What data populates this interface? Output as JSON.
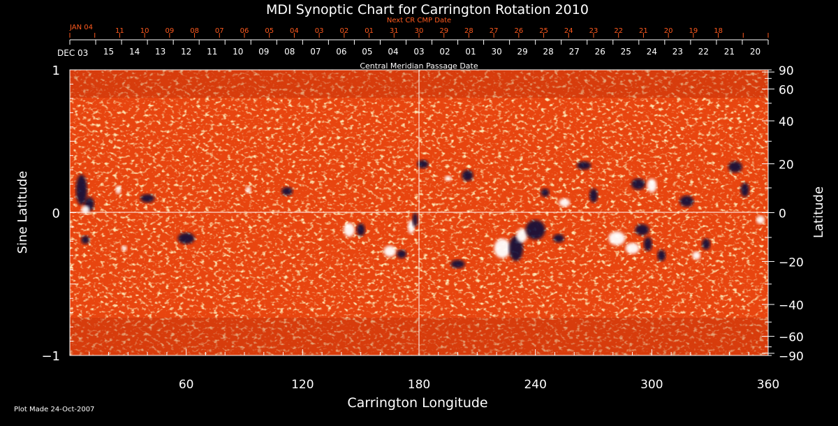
{
  "chart_data": {
    "type": "heatmap",
    "title": "MDI Synoptic Chart for Carrington Rotation 2010",
    "xlabel": "Carrington Longitude",
    "ylabel_left": "Sine Latitude",
    "ylabel_right": "Latitude",
    "xlim": [
      0,
      360
    ],
    "ylim": [
      -1,
      1
    ],
    "x_ticks": [
      60,
      120,
      180,
      240,
      300,
      360
    ],
    "y_ticks_left": [
      -1,
      0,
      1
    ],
    "y_ticks_right": [
      90,
      60,
      40,
      20,
      0,
      -20,
      -40,
      -60,
      -90
    ],
    "top_axis_label": "Central Meridian Passage Date",
    "top_axis_first_label": "DEC 03",
    "top_axis_dates": [
      "15",
      "14",
      "13",
      "12",
      "11",
      "10",
      "09",
      "08",
      "07",
      "06",
      "05",
      "04",
      "03",
      "02",
      "01",
      "30",
      "29",
      "28",
      "27",
      "26",
      "25",
      "24",
      "23",
      "22",
      "21",
      "20"
    ],
    "next_cr_label": "Next CR CMP Date",
    "next_cr_first_label": "JAN 04",
    "next_cr_dates": [
      "11",
      "10",
      "09",
      "08",
      "07",
      "06",
      "05",
      "04",
      "03",
      "02",
      "01",
      "31",
      "30",
      "29",
      "28",
      "27",
      "26",
      "25",
      "24",
      "23",
      "22",
      "21",
      "20",
      "19",
      "18"
    ],
    "footer": "Plot Made 24-Oct-2007",
    "colors": {
      "background": "#000000",
      "map_base": "#e8450f",
      "positive_polarity": "#ffffff",
      "negative_polarity": "#0a0a3a",
      "next_cr_text": "#ff5a1e",
      "axis": "#ffffff"
    }
  }
}
